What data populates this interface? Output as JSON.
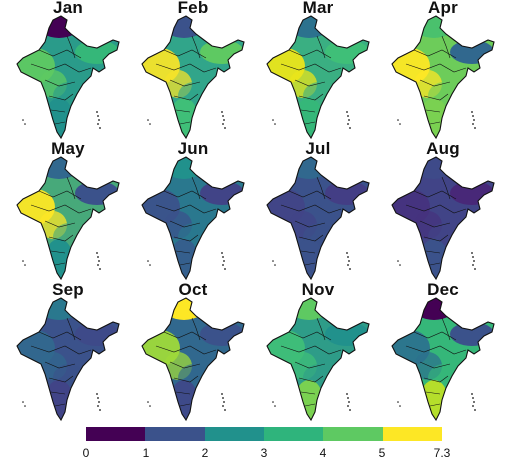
{
  "months": [
    "Jan",
    "Feb",
    "Mar",
    "Apr",
    "May",
    "Jun",
    "Jul",
    "Aug",
    "Sep",
    "Oct",
    "Nov",
    "Dec"
  ],
  "colorbar": {
    "ticks": [
      "0",
      "1",
      "2",
      "3",
      "4",
      "5",
      "7.3"
    ],
    "colors": [
      "#440154",
      "#3b528b",
      "#21918c",
      "#2fb47c",
      "#5ec962",
      "#fde725"
    ]
  },
  "map_colors": {
    "Jan": {
      "base": "#2a9b8a",
      "north": "#440154",
      "west": "#5ec962",
      "east": "#35b779",
      "south": "#21918c"
    },
    "Feb": {
      "base": "#31a58a",
      "north": "#3b528b",
      "west": "#f5e32a",
      "east": "#5ec962",
      "south": "#3fbf78"
    },
    "Mar": {
      "base": "#3aaf82",
      "north": "#2c728e",
      "west": "#eae51a",
      "east": "#3fbf78",
      "south": "#35b779"
    },
    "Apr": {
      "base": "#6dcc5a",
      "north": "#4ac16d",
      "west": "#fde725",
      "east": "#31688e",
      "south": "#7ad151"
    },
    "May": {
      "base": "#47a97a",
      "north": "#31688e",
      "west": "#fde725",
      "east": "#3b528b",
      "south": "#21918c"
    },
    "Jun": {
      "base": "#2a788e",
      "north": "#21918c",
      "west": "#3b528b",
      "east": "#414487",
      "south": "#355f8d"
    },
    "Jul": {
      "base": "#3b528b",
      "north": "#31688e",
      "west": "#414487",
      "east": "#433e85",
      "south": "#3b528b"
    },
    "Aug": {
      "base": "#414487",
      "north": "#3e4a89",
      "west": "#46337e",
      "east": "#482878",
      "south": "#3b528b"
    },
    "Sep": {
      "base": "#3b528b",
      "north": "#2a788e",
      "west": "#31688e",
      "east": "#3e4a89",
      "south": "#414487"
    },
    "Oct": {
      "base": "#31688e",
      "north": "#fde725",
      "west": "#9fda3a",
      "east": "#3b528b",
      "south": "#3e4a89"
    },
    "Nov": {
      "base": "#2e9c88",
      "north": "#5ec962",
      "west": "#3fbf78",
      "east": "#21918c",
      "south": "#7ad151"
    },
    "Dec": {
      "base": "#35b779",
      "north": "#440154",
      "west": "#2c728e",
      "east": "#3b528b",
      "south": "#b5de2b"
    }
  }
}
